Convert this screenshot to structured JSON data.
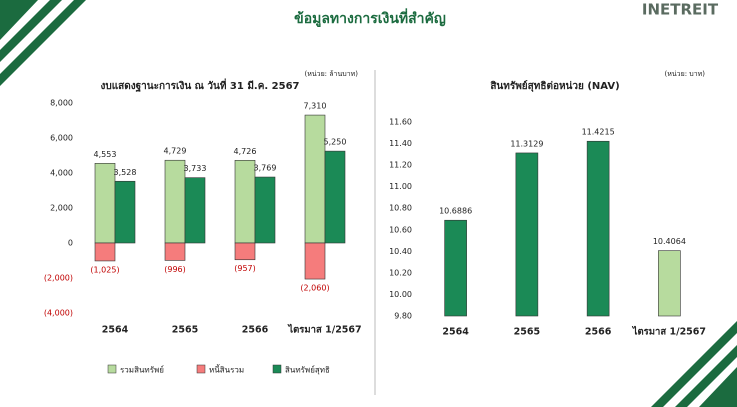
{
  "title": "ข้อมูลทางการเงินที่สำคัญ",
  "logo": "INETREIT",
  "chart_data": [
    {
      "type": "bar",
      "title": "งบแสดงฐานะการเงิน ณ วันที่ 31 มี.ค. 2567",
      "unit": "(หน่วย: ล้านบาท)",
      "categories": [
        "2564",
        "2565",
        "2566",
        "ไตรมาส 1/2567"
      ],
      "series": [
        {
          "name": "รวมสินทรัพย์",
          "color": "#b7db9e",
          "values": [
            4553,
            4729,
            4726,
            7310
          ],
          "value_labels": [
            "4,553",
            "4,729",
            "4,726",
            "7,310"
          ]
        },
        {
          "name": "หนี้สินรวม",
          "color": "#f57c7c",
          "values": [
            -1025,
            -996,
            -957,
            -2060
          ],
          "value_labels": [
            "(1,025)",
            "(996)",
            "(957)",
            "(2,060)"
          ]
        },
        {
          "name": "สินทรัพย์สุทธิ",
          "color": "#1b8a56",
          "values": [
            3528,
            3733,
            3769,
            5250
          ],
          "value_labels": [
            "3,528",
            "3,733",
            "3,769",
            "5,250"
          ]
        }
      ],
      "ylim": [
        -4000,
        8000
      ],
      "yticks": [
        {
          "value": -4000,
          "label": "(4,000)"
        },
        {
          "value": -2000,
          "label": "(2,000)"
        },
        0,
        {
          "value": 2000,
          "label": "2,000"
        },
        {
          "value": 4000,
          "label": "4,000"
        },
        {
          "value": 6000,
          "label": "6,000"
        },
        {
          "value": 8000,
          "label": "8,000"
        }
      ],
      "legend": "bottom"
    },
    {
      "type": "bar",
      "title": "สินทรัพย์สุทธิต่อหน่วย (NAV)",
      "unit": "(หน่วย: บาท)",
      "categories": [
        "2564",
        "2565",
        "2566",
        "ไตรมาส 1/2567"
      ],
      "values": [
        10.6886,
        11.3129,
        11.4215,
        10.4064
      ],
      "colors": [
        "#1b8a56",
        "#1b8a56",
        "#1b8a56",
        "#b7db9e"
      ],
      "ylim": [
        9.8,
        11.6
      ],
      "yticks": [
        {
          "value": 9.8,
          "label": "9.80"
        },
        {
          "value": 10.0,
          "label": "10.00"
        },
        {
          "value": 10.2,
          "label": "10.20"
        },
        {
          "value": 10.4,
          "label": "10.40"
        },
        {
          "value": 10.6,
          "label": "10.60"
        },
        {
          "value": 10.8,
          "label": "10.80"
        },
        {
          "value": 11.0,
          "label": "11.00"
        },
        {
          "value": 11.2,
          "label": "11.20"
        },
        {
          "value": 11.4,
          "label": "11.40"
        },
        {
          "value": 11.6,
          "label": "11.60"
        }
      ]
    }
  ]
}
